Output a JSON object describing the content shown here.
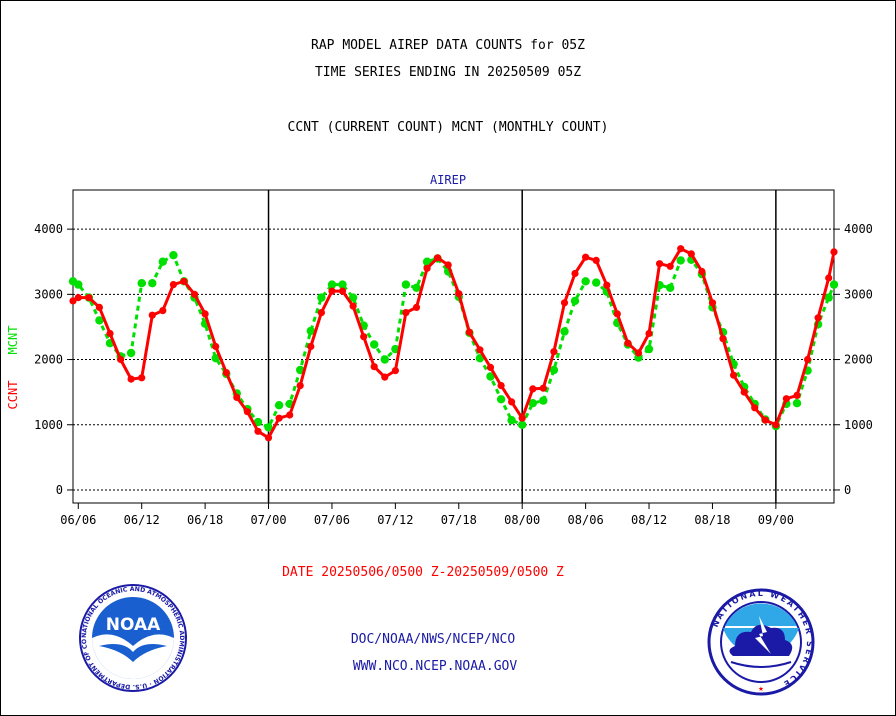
{
  "header": {
    "line1": "RAP MODEL AIREP DATA COUNTS for 05Z",
    "line2": "TIME SERIES ENDING IN 20250509 05Z",
    "line3": "CCNT (CURRENT COUNT) MCNT (MONTHLY COUNT)"
  },
  "footer": {
    "date_range": "DATE 20250506/0500 Z-20250509/0500 Z",
    "org": "DOC/NOAA/NWS/NCEP/NCO",
    "url": "WWW.NCO.NCEP.NOAA.GOV",
    "noaa_logo_text": "NOAA",
    "noaa_seal_text": "NATIONAL OCEANIC AND ATMOSPHERIC ADMINISTRATION · U.S. DEPARTMENT OF COMMERCE",
    "nws_seal_text": "NATIONAL WEATHER SERVICE"
  },
  "colors": {
    "ccnt": "#ff0000",
    "mcnt": "#00e000",
    "title_blue": "#1a1aa6",
    "grid": "#000000",
    "footer_red": "#ff0000",
    "footer_blue": "#1a1aa6"
  },
  "chart_data": {
    "type": "line",
    "title": "AIREP",
    "ylabel_ccnt": "CCNT",
    "ylabel_mcnt": "MCNT",
    "ylim": [
      -200,
      4600
    ],
    "yticks": [
      0,
      1000,
      2000,
      3000,
      4000
    ],
    "xticks": [
      "06/06",
      "06/12",
      "06/18",
      "07/00",
      "07/06",
      "07/12",
      "07/18",
      "08/00",
      "08/06",
      "08/12",
      "08/18",
      "09/00"
    ],
    "x_hours": [
      0,
      6,
      12,
      18,
      24,
      30,
      36,
      42,
      48,
      54,
      60,
      66
    ],
    "day_boundaries": [
      18,
      42,
      66
    ],
    "x_range": [
      -0.5,
      71.5
    ],
    "grid": true,
    "series": [
      {
        "name": "CCNT",
        "x": [
          -0.5,
          0,
          1,
          2,
          3,
          4,
          5,
          6,
          7,
          8,
          9,
          10,
          11,
          12,
          13,
          14,
          15,
          16,
          17,
          18,
          19,
          20,
          21,
          22,
          23,
          24,
          25,
          26,
          27,
          28,
          29,
          30,
          31,
          32,
          33,
          34,
          35,
          36,
          37,
          38,
          39,
          40,
          41,
          42,
          43,
          44,
          45,
          46,
          47,
          48,
          49,
          50,
          51,
          52,
          53,
          54,
          55,
          56,
          57,
          58,
          59,
          60,
          61,
          62,
          63,
          64,
          65,
          66,
          67,
          68,
          69,
          70,
          71,
          71.5
        ],
        "values": [
          2900,
          2950,
          2950,
          2800,
          2400,
          2000,
          1700,
          1720,
          2680,
          2750,
          3150,
          3200,
          3000,
          2700,
          2200,
          1800,
          1420,
          1200,
          900,
          800,
          1100,
          1150,
          1600,
          2200,
          2720,
          3050,
          3050,
          2820,
          2350,
          1890,
          1730,
          1830,
          2720,
          2800,
          3400,
          3560,
          3450,
          3010,
          2420,
          2150,
          1880,
          1600,
          1350,
          1100,
          1550,
          1560,
          2120,
          2870,
          3320,
          3570,
          3520,
          3140,
          2700,
          2250,
          2100,
          2400,
          3470,
          3430,
          3700,
          3620,
          3350,
          2870,
          2320,
          1760,
          1500,
          1260,
          1070,
          1000,
          1400,
          1450,
          2000,
          2640,
          3250,
          3650
        ]
      },
      {
        "name": "MCNT",
        "x": [
          -0.5,
          0,
          1,
          2,
          3,
          4,
          5,
          6,
          7,
          8,
          9,
          10,
          11,
          12,
          13,
          14,
          15,
          16,
          17,
          18,
          19,
          20,
          21,
          22,
          23,
          24,
          25,
          26,
          27,
          28,
          29,
          30,
          31,
          32,
          33,
          34,
          35,
          36,
          37,
          38,
          39,
          40,
          41,
          42,
          43,
          44,
          45,
          46,
          47,
          48,
          49,
          50,
          51,
          52,
          53,
          54,
          55,
          56,
          57,
          58,
          59,
          60,
          61,
          62,
          63,
          64,
          65,
          66,
          67,
          68,
          69,
          70,
          71,
          71.5
        ],
        "values": [
          3200,
          3150,
          2950,
          2600,
          2250,
          2050,
          2100,
          3170,
          3170,
          3500,
          3600,
          3200,
          2950,
          2550,
          2020,
          1780,
          1480,
          1240,
          1040,
          960,
          1300,
          1320,
          1840,
          2440,
          2950,
          3150,
          3150,
          2950,
          2520,
          2230,
          2000,
          2160,
          3150,
          3100,
          3500,
          3550,
          3350,
          2960,
          2410,
          2020,
          1740,
          1390,
          1070,
          1000,
          1330,
          1370,
          1840,
          2430,
          2900,
          3200,
          3180,
          3040,
          2560,
          2230,
          2030,
          2160,
          3140,
          3100,
          3520,
          3530,
          3310,
          2800,
          2420,
          1930,
          1580,
          1320,
          1080,
          980,
          1320,
          1330,
          1830,
          2540,
          2950,
          3150
        ]
      }
    ]
  }
}
